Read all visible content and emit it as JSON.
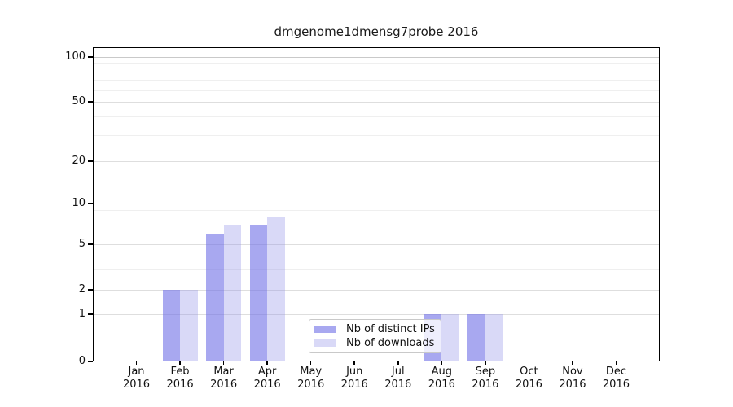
{
  "chart_data": {
    "type": "bar",
    "title": "dmgenome1dmensg7probe 2016",
    "x_categories": [
      "Jan",
      "Feb",
      "Mar",
      "Apr",
      "May",
      "Jun",
      "Jul",
      "Aug",
      "Sep",
      "Oct",
      "Nov",
      "Dec"
    ],
    "x_year": "2016",
    "series": [
      {
        "name": "Nb of distinct IPs",
        "color": "#a8a8f0",
        "fill": "rgba(110,110,230,0.6)",
        "values": [
          0,
          2,
          6,
          7,
          0,
          0,
          0,
          1,
          1,
          0,
          0,
          0
        ]
      },
      {
        "name": "Nb of downloads",
        "color": "#d9d9f7",
        "fill": "rgba(146,146,232,0.35)",
        "values": [
          0,
          2,
          7,
          8,
          0,
          0,
          0,
          1,
          1,
          0,
          0,
          0
        ]
      }
    ],
    "y_axis": {
      "scale": "log above 1, linear 0-1 (symlog)",
      "ticks": [
        100,
        50,
        20,
        10,
        5,
        2,
        1,
        0
      ],
      "minor_gridlines": [
        90,
        80,
        70,
        60,
        40,
        30,
        9,
        8,
        7,
        6,
        4,
        3
      ],
      "range": [
        0,
        115
      ]
    },
    "grid": true,
    "legend": {
      "location": "lower center, overlapping Aug bars",
      "items": [
        "Nb of distinct IPs",
        "Nb of downloads"
      ]
    }
  }
}
